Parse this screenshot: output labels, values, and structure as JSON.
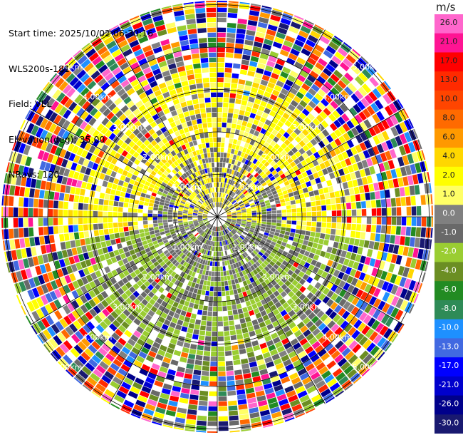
{
  "header": {
    "start_time": "Start time: 2025/10/02 06:30:16",
    "instrument": "WLS200s-181",
    "field": "Field: VEL",
    "elevation": "Elevation(deg): 35.00",
    "nrays": "NRays: 120"
  },
  "colorbar": {
    "unit": "m/s",
    "levels": [
      {
        "label": "26.0",
        "color": "#ff66cc"
      },
      {
        "label": "21.0",
        "color": "#ff1493"
      },
      {
        "label": "17.0",
        "color": "#ff0000"
      },
      {
        "label": "13.0",
        "color": "#ff2a00"
      },
      {
        "label": "10.0",
        "color": "#ff4500"
      },
      {
        "label": "8.0",
        "color": "#ff6a00"
      },
      {
        "label": "6.0",
        "color": "#ff9900"
      },
      {
        "label": "4.0",
        "color": "#ffd700"
      },
      {
        "label": "2.0",
        "color": "#ffff00"
      },
      {
        "label": "1.0",
        "color": "#ffff66"
      },
      {
        "label": "0.0",
        "color": "#808080"
      },
      {
        "label": "-1.0",
        "color": "#696969"
      },
      {
        "label": "-2.0",
        "color": "#9acd32"
      },
      {
        "label": "-4.0",
        "color": "#6b8e23"
      },
      {
        "label": "-6.0",
        "color": "#228b22"
      },
      {
        "label": "-8.0",
        "color": "#2e8b57"
      },
      {
        "label": "-10.0",
        "color": "#1e90ff"
      },
      {
        "label": "-13.0",
        "color": "#4169e1"
      },
      {
        "label": "-17.0",
        "color": "#0000ff"
      },
      {
        "label": "-21.0",
        "color": "#0000cd"
      },
      {
        "label": "-26.0",
        "color": "#00008b"
      },
      {
        "label": "-30.0",
        "color": "#191970"
      }
    ]
  },
  "range_rings": [
    "1.00km",
    "2.00km",
    "3.00km",
    "4.00km",
    "5.00km"
  ],
  "ppi": {
    "nrays": 120,
    "rings_km": [
      1,
      2,
      3,
      4,
      5
    ]
  }
}
